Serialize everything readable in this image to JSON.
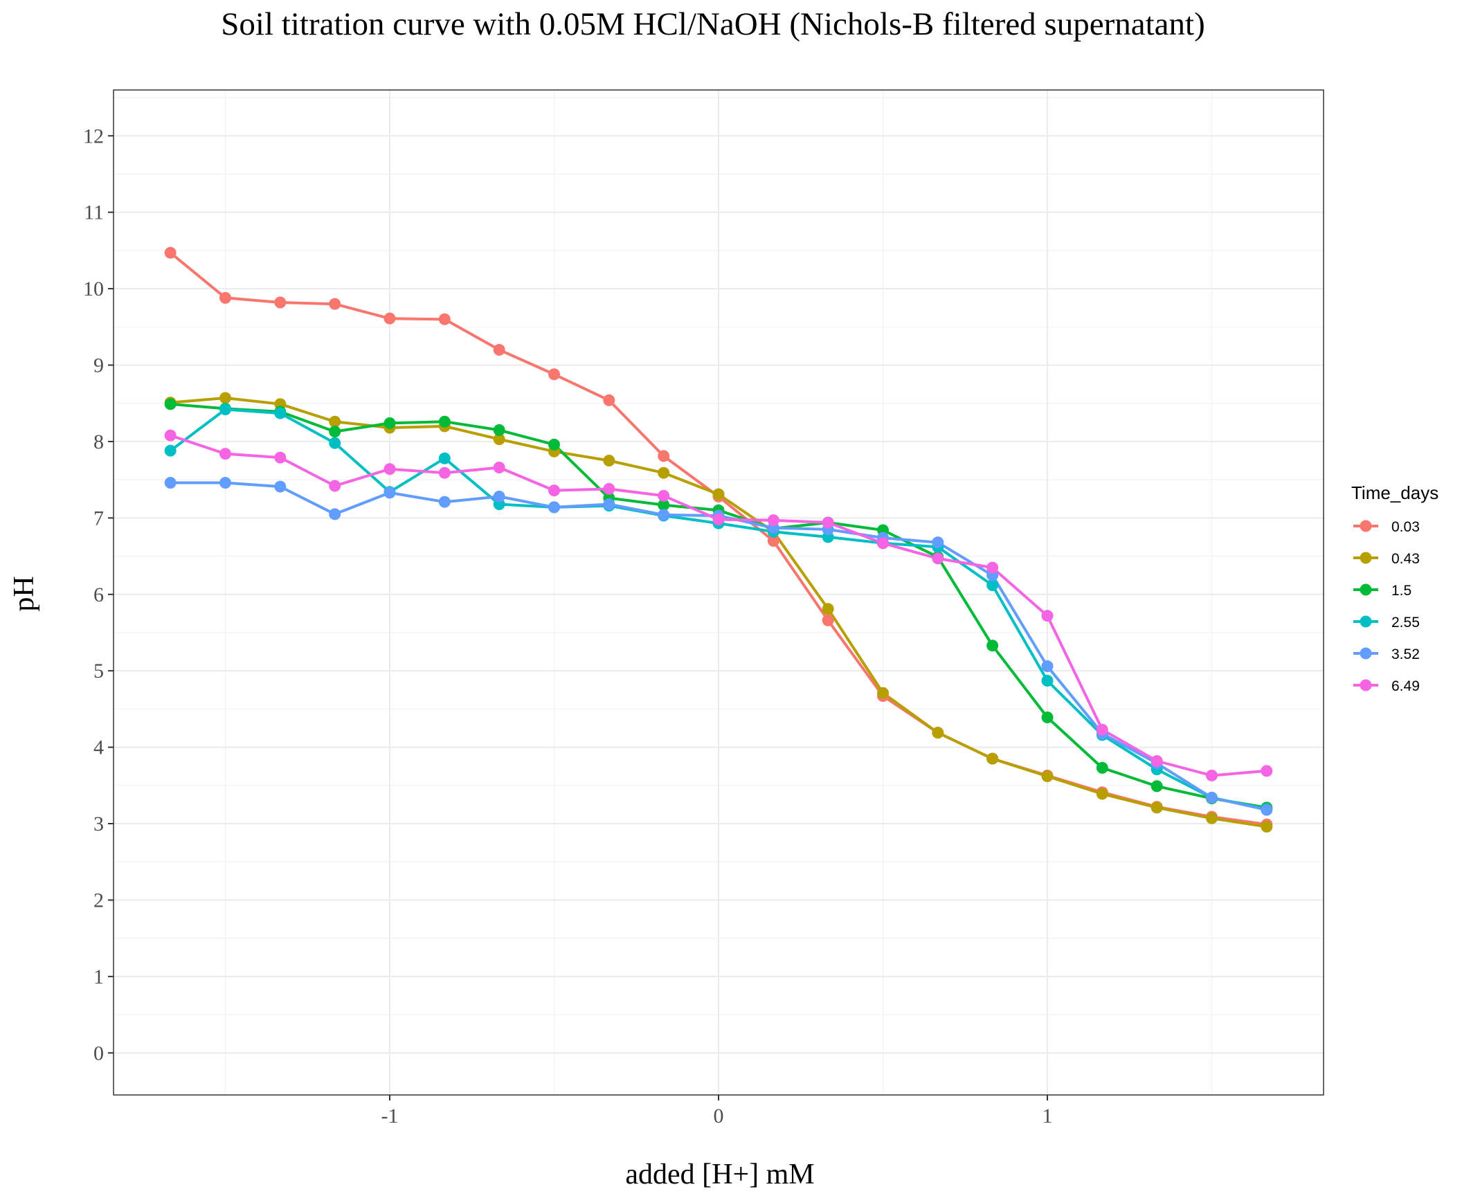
{
  "chart_data": {
    "type": "line",
    "title": "Soil titration curve with 0.05M HCl/NaOH (Nichols-B filtered supernatant)",
    "xlabel": "added [H+] mM",
    "ylabel": "pH",
    "xlim": [
      -1.84,
      1.84
    ],
    "ylim": [
      -0.55,
      12.6
    ],
    "x_ticks": [
      -1,
      0,
      1
    ],
    "x_tick_labels": [
      "-1",
      "0",
      "1"
    ],
    "y_ticks": [
      0,
      1,
      2,
      3,
      4,
      5,
      6,
      7,
      8,
      9,
      10,
      11,
      12
    ],
    "y_tick_labels": [
      "0",
      "1",
      "2",
      "3",
      "4",
      "5",
      "6",
      "7",
      "8",
      "9",
      "10",
      "11",
      "12"
    ],
    "grid": true,
    "legend": {
      "title": "Time_days",
      "position": "right"
    },
    "x": [
      -1.667,
      -1.5,
      -1.333,
      -1.167,
      -1.0,
      -0.833,
      -0.667,
      -0.5,
      -0.333,
      -0.167,
      0.0,
      0.167,
      0.333,
      0.5,
      0.667,
      0.833,
      1.0,
      1.167,
      1.333,
      1.5,
      1.667
    ],
    "series": [
      {
        "name": "0.03",
        "color": "#F8766D",
        "values": [
          10.47,
          9.88,
          9.82,
          9.8,
          9.61,
          9.6,
          9.2,
          8.88,
          8.54,
          7.81,
          7.28,
          6.7,
          5.66,
          4.67,
          4.19,
          3.85,
          3.63,
          3.41,
          3.22,
          3.09,
          2.99
        ]
      },
      {
        "name": "0.43",
        "color": "#B79F00",
        "values": [
          8.51,
          8.57,
          8.49,
          8.26,
          8.18,
          8.2,
          8.03,
          7.87,
          7.75,
          7.59,
          7.31,
          6.82,
          5.81,
          4.71,
          4.19,
          3.85,
          3.62,
          3.39,
          3.21,
          3.07,
          2.96
        ]
      },
      {
        "name": "1.5",
        "color": "#00BA38",
        "values": [
          8.49,
          8.43,
          8.39,
          8.13,
          8.24,
          8.26,
          8.15,
          7.96,
          7.26,
          7.17,
          7.1,
          6.86,
          6.94,
          6.84,
          6.49,
          5.33,
          4.39,
          3.73,
          3.49,
          3.33,
          3.21
        ]
      },
      {
        "name": "2.55",
        "color": "#00BFC4",
        "values": [
          7.88,
          8.42,
          8.37,
          7.98,
          7.34,
          7.78,
          7.18,
          7.14,
          7.16,
          7.03,
          6.93,
          6.82,
          6.75,
          6.67,
          6.62,
          6.12,
          4.87,
          4.16,
          3.71,
          3.34,
          3.19
        ]
      },
      {
        "name": "3.52",
        "color": "#619CFF",
        "values": [
          7.46,
          7.46,
          7.41,
          7.05,
          7.33,
          7.21,
          7.28,
          7.14,
          7.18,
          7.04,
          7.03,
          6.87,
          6.85,
          6.74,
          6.68,
          6.25,
          5.06,
          4.18,
          3.79,
          3.34,
          3.18
        ]
      },
      {
        "name": "6.49",
        "color": "#F564E3",
        "values": [
          8.08,
          7.84,
          7.79,
          7.42,
          7.64,
          7.59,
          7.66,
          7.36,
          7.38,
          7.29,
          6.98,
          6.97,
          6.94,
          6.67,
          6.47,
          6.35,
          5.72,
          4.23,
          3.82,
          3.63,
          3.69
        ]
      }
    ]
  }
}
